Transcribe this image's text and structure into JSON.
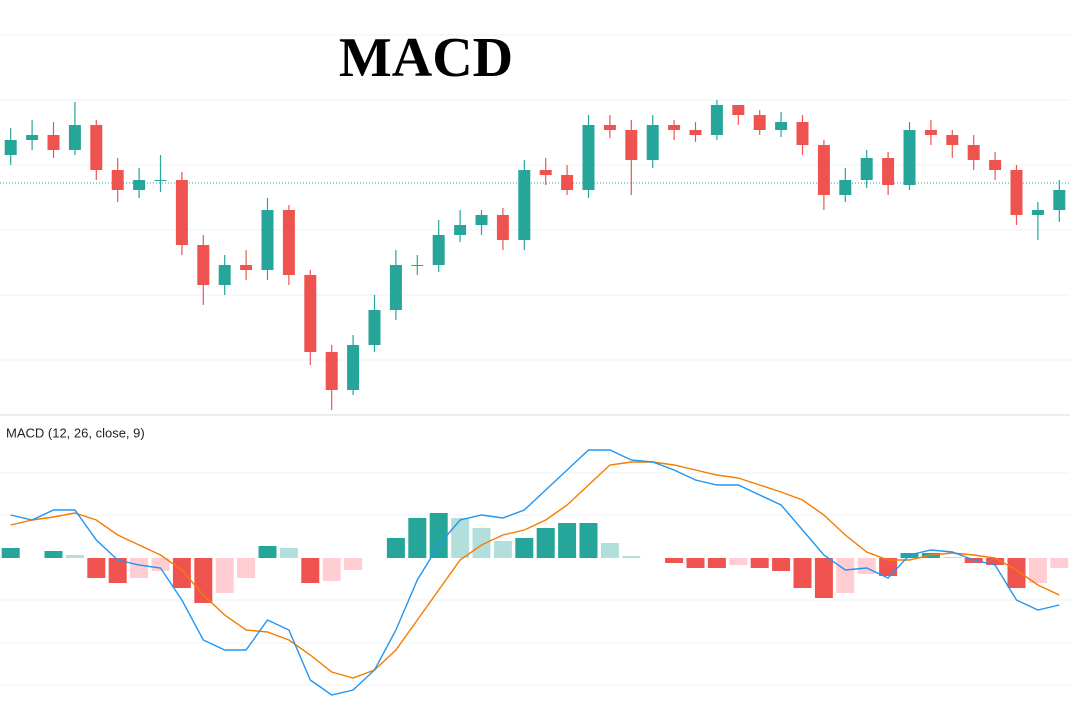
{
  "chart_data": [
    {
      "type": "candlestick",
      "title": "MACD",
      "up_color": "#26a69a",
      "down_color": "#ef5350",
      "open": [
        265,
        280,
        285,
        270,
        295,
        250,
        230,
        240,
        240,
        175,
        135,
        155,
        150,
        210,
        145,
        68,
        30,
        75,
        110,
        155,
        155,
        185,
        195,
        205,
        180,
        250,
        245,
        230,
        295,
        290,
        260,
        295,
        290,
        285,
        315,
        305,
        290,
        298,
        275,
        225,
        240,
        262,
        235,
        290,
        285,
        275,
        260,
        250,
        205,
        210
      ],
      "high": [
        292,
        300,
        298,
        318,
        300,
        262,
        252,
        265,
        248,
        185,
        165,
        170,
        222,
        215,
        150,
        75,
        85,
        125,
        170,
        165,
        200,
        210,
        210,
        212,
        260,
        262,
        255,
        305,
        305,
        300,
        305,
        300,
        298,
        320,
        312,
        310,
        308,
        305,
        280,
        252,
        270,
        268,
        298,
        300,
        290,
        285,
        268,
        255,
        218,
        240
      ],
      "low": [
        255,
        270,
        262,
        265,
        240,
        218,
        222,
        228,
        165,
        115,
        125,
        140,
        140,
        135,
        55,
        10,
        25,
        68,
        100,
        145,
        148,
        178,
        185,
        170,
        170,
        235,
        225,
        222,
        282,
        225,
        252,
        280,
        278,
        280,
        295,
        285,
        283,
        265,
        210,
        218,
        232,
        225,
        230,
        275,
        262,
        250,
        240,
        195,
        180,
        198
      ],
      "close": [
        280,
        285,
        270,
        295,
        250,
        230,
        240,
        240,
        175,
        135,
        155,
        150,
        210,
        145,
        68,
        30,
        75,
        110,
        155,
        155,
        185,
        195,
        205,
        180,
        250,
        245,
        230,
        295,
        290,
        260,
        295,
        290,
        285,
        315,
        305,
        290,
        298,
        275,
        225,
        240,
        262,
        235,
        290,
        285,
        275,
        260,
        250,
        205,
        210,
        230
      ],
      "ylim": [
        5,
        335
      ],
      "yticks": [
        60,
        125,
        190,
        255,
        320,
        385
      ],
      "grid": true,
      "price_line": 237,
      "price_line_color": "#26a69a"
    },
    {
      "type": "macd",
      "label": "MACD (12, 26, close, 9)",
      "series": [
        {
          "color": "#2196f3",
          "values": [
            43,
            38,
            48,
            48,
            18,
            -2,
            -7,
            -10,
            -42,
            -82,
            -92,
            -92,
            -62,
            -72,
            -122,
            -137,
            -132,
            -112,
            -72,
            -22,
            13,
            38,
            43,
            40,
            48,
            68,
            88,
            108,
            108,
            98,
            96,
            88,
            78,
            73,
            73,
            63,
            53,
            28,
            3,
            -12,
            -10,
            -20,
            3,
            8,
            6,
            -2,
            -7,
            -42,
            -52,
            -47
          ]
        },
        {
          "color": "#f57c00",
          "values": [
            33,
            38,
            41,
            45,
            38,
            23,
            13,
            3,
            -12,
            -37,
            -57,
            -72,
            -74,
            -82,
            -97,
            -114,
            -120,
            -112,
            -92,
            -62,
            -32,
            -2,
            13,
            23,
            28,
            38,
            53,
            73,
            93,
            96,
            96,
            93,
            88,
            83,
            80,
            73,
            66,
            58,
            43,
            23,
            6,
            -2,
            -2,
            3,
            5,
            3,
            0,
            -12,
            -27,
            -37
          ]
        }
      ],
      "histogram": [
        10,
        0,
        7,
        3,
        -20,
        -25,
        -20,
        -13,
        -30,
        -45,
        -35,
        -20,
        12,
        10,
        -25,
        -23,
        -12,
        0,
        20,
        40,
        45,
        40,
        30,
        17,
        20,
        30,
        35,
        35,
        15,
        2,
        0,
        -5,
        -10,
        -10,
        -7,
        -10,
        -13,
        -30,
        -40,
        -35,
        -16,
        -18,
        5,
        5,
        1,
        -5,
        -7,
        -30,
        -25,
        -10
      ],
      "hist_colors": [
        "#26a69a",
        "#b2dfdb",
        "#ef5350",
        "#ffcdd2"
      ],
      "ylim": [
        -169,
        140
      ],
      "yticks": [
        -127,
        -85,
        -42,
        43,
        85
      ],
      "grid": true
    }
  ]
}
